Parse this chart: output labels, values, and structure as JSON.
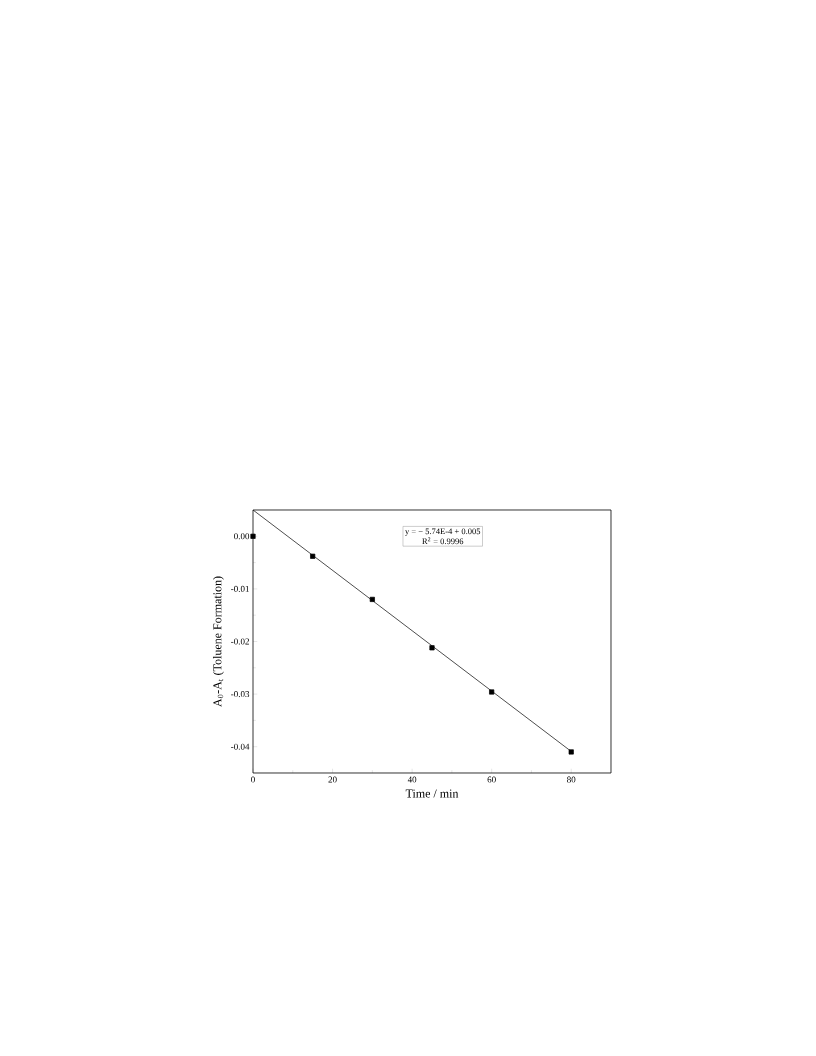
{
  "chart_data": {
    "type": "scatter",
    "xlabel": "Time / min",
    "ylabel": "A$_{0}$-A$_{t}$ (Toluene Formation)",
    "xlim": [
      0,
      90
    ],
    "ylim": [
      -0.045,
      0.005
    ],
    "xticks": [
      0,
      20,
      40,
      60,
      80
    ],
    "yticks": [
      {
        "value": 0,
        "label": "0.00"
      },
      -0.01,
      -0.02,
      -0.03,
      -0.04
    ],
    "annotations": [
      "y = − 5.74E-4 + 0.005",
      "R$^{2}$ = 0.9996"
    ],
    "series": [
      {
        "marker": "square",
        "color": "#000000",
        "x": [
          0,
          15,
          30,
          45,
          60,
          80
        ],
        "values": [
          0,
          -0.0038,
          -0.012,
          -0.0212,
          -0.0296,
          -0.041
        ]
      },
      {
        "type": "line",
        "marker": "none",
        "color": "#000000",
        "x": [
          0,
          80
        ],
        "values": [
          0.005,
          -0.0409
        ]
      }
    ]
  }
}
